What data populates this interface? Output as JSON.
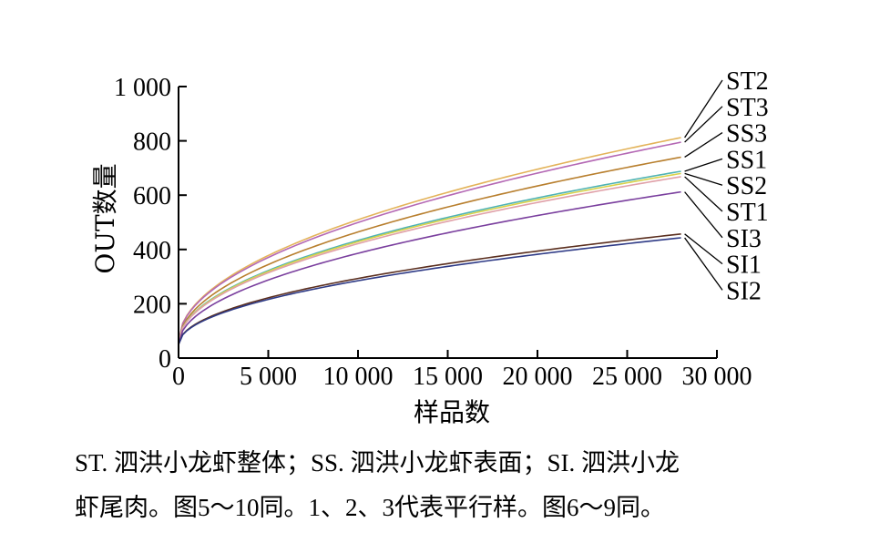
{
  "chart_data": {
    "type": "line",
    "xlabel": "样品数",
    "ylabel": "OUT数量",
    "xlim": [
      0,
      30000
    ],
    "ylim": [
      0,
      1000
    ],
    "xticks": [
      0,
      5000,
      10000,
      15000,
      20000,
      25000,
      30000
    ],
    "xtick_labels": [
      "0",
      "5 000",
      "10 000",
      "15 000",
      "20 000",
      "25 000",
      "30 000"
    ],
    "yticks": [
      0,
      200,
      400,
      600,
      800,
      1000
    ],
    "ytick_labels": [
      "0",
      "200",
      "400",
      "600",
      "800",
      "1 000"
    ],
    "grid": false,
    "x_end": 28000,
    "series": [
      {
        "name": "ST2",
        "color": "#e3b35a",
        "start": 60,
        "end": 812
      },
      {
        "name": "ST3",
        "color": "#b468b4",
        "start": 60,
        "end": 795
      },
      {
        "name": "SS3",
        "color": "#b87f2e",
        "start": 55,
        "end": 740
      },
      {
        "name": "SS1",
        "color": "#4fb3b3",
        "start": 55,
        "end": 688
      },
      {
        "name": "SS2",
        "color": "#d8d24a",
        "start": 55,
        "end": 680
      },
      {
        "name": "ST1",
        "color": "#e0a0a8",
        "start": 55,
        "end": 668
      },
      {
        "name": "SI3",
        "color": "#7a3f9e",
        "start": 50,
        "end": 612
      },
      {
        "name": "SI1",
        "color": "#5a2e1e",
        "start": 50,
        "end": 457
      },
      {
        "name": "SI2",
        "color": "#2e3a86",
        "start": 50,
        "end": 443
      }
    ]
  },
  "caption": {
    "line1": "ST. 泗洪小龙虾整体；SS. 泗洪小龙虾表面；SI. 泗洪小龙",
    "line2": "虾尾肉。图5～10同。1、2、3代表平行样。图6～9同。"
  }
}
